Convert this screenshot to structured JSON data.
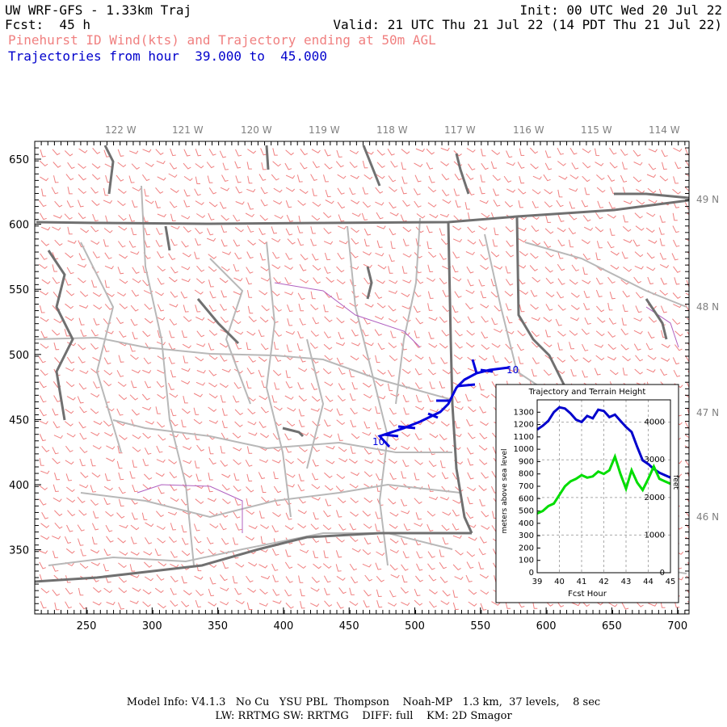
{
  "header": {
    "title": "UW WRF-GFS - 1.33km Traj",
    "init": "Init: 00 UTC Wed 20 Jul 22",
    "fcst": "Fcst:  45 h",
    "valid": "Valid: 21 UTC Thu 21 Jul 22 (14 PDT Thu 21 Jul 22)",
    "wind_line": "Pinehurst ID Wind(kts) and Trajectory ending at 50m AGL",
    "traj_line": "Trajectories from hour  39.000 to  45.000"
  },
  "map": {
    "x_ticks": [
      "250",
      "300",
      "350",
      "400",
      "450",
      "500",
      "550",
      "600",
      "650",
      "700"
    ],
    "y_ticks": [
      "650",
      "600",
      "550",
      "500",
      "450",
      "400",
      "350"
    ],
    "lon_labels": [
      "122 W",
      "121 W",
      "120 W",
      "119 W",
      "118 W",
      "117 W",
      "116 W",
      "115 W",
      "114 W"
    ],
    "lat_labels": [
      "49 N",
      "48 N",
      "47 N",
      "46 N"
    ],
    "traj_start_label": "10",
    "traj_end_label": "10",
    "colors": {
      "barb": "#f08080",
      "coast": "#707070",
      "county": "#b8b8b8",
      "admin": "#b060c0",
      "trajectory": "#0000dd"
    }
  },
  "inset": {
    "title": "Trajectory and Terrain Height",
    "xlabel": "Fcst Hour",
    "ylabel_left": "meters above sea level",
    "ylabel_right": "feet",
    "x_ticks": [
      "39",
      "40",
      "41",
      "42",
      "43",
      "44",
      "45"
    ],
    "y_ticks_m": [
      "0",
      "100",
      "200",
      "300",
      "400",
      "500",
      "600",
      "700",
      "800",
      "900",
      "1000",
      "1100",
      "1200",
      "1300"
    ],
    "y_ticks_ft": [
      "0",
      "1000",
      "2000",
      "3000",
      "4000"
    ]
  },
  "chart_data": {
    "type": "line",
    "title": "Trajectory and Terrain Height",
    "xlabel": "Fcst Hour",
    "ylabel": "meters above sea level",
    "xlim": [
      39,
      45
    ],
    "ylim": [
      0,
      1400
    ],
    "series": [
      {
        "color": "#0000cc",
        "x": [
          39,
          39.25,
          39.5,
          39.75,
          40,
          40.25,
          40.5,
          40.75,
          41,
          41.25,
          41.5,
          41.75,
          42,
          42.25,
          42.5,
          42.75,
          43,
          43.25,
          43.5,
          43.75,
          44,
          44.25,
          44.5,
          44.75,
          45
        ],
        "values": [
          1160,
          1190,
          1230,
          1300,
          1340,
          1330,
          1290,
          1240,
          1220,
          1270,
          1250,
          1320,
          1310,
          1260,
          1280,
          1230,
          1180,
          1140,
          1020,
          910,
          880,
          840,
          810,
          790,
          770
        ]
      },
      {
        "color": "#00dd00",
        "x": [
          39,
          39.25,
          39.5,
          39.75,
          40,
          40.25,
          40.5,
          40.75,
          41,
          41.25,
          41.5,
          41.75,
          42,
          42.25,
          42.5,
          42.75,
          43,
          43.25,
          43.5,
          43.75,
          44,
          44.25,
          44.5,
          44.75,
          45
        ],
        "values": [
          480,
          500,
          540,
          560,
          630,
          700,
          740,
          760,
          790,
          770,
          780,
          820,
          800,
          830,
          940,
          800,
          680,
          830,
          730,
          670,
          760,
          860,
          760,
          740,
          720
        ]
      }
    ]
  }
}
